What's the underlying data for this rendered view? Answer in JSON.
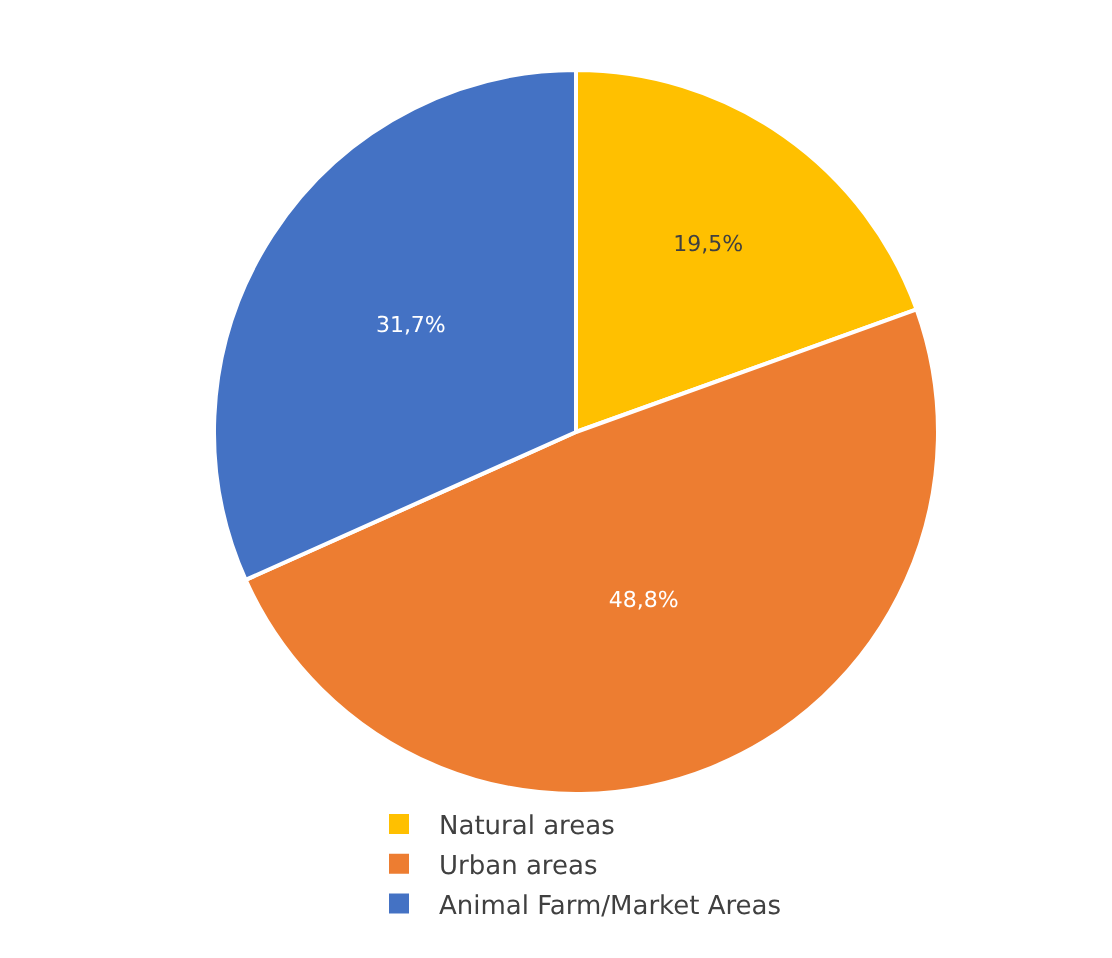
{
  "chart_data": {
    "type": "pie",
    "categories": [
      "Natural areas",
      "Urban areas",
      "Animal Farm/Market Areas"
    ],
    "values": [
      19.5,
      48.8,
      31.7
    ],
    "value_labels": [
      "19,5%",
      "48,8%",
      "31,7%"
    ],
    "colors": [
      "#ffc000",
      "#ed7d31",
      "#4472c4"
    ],
    "legend": "bottom"
  }
}
